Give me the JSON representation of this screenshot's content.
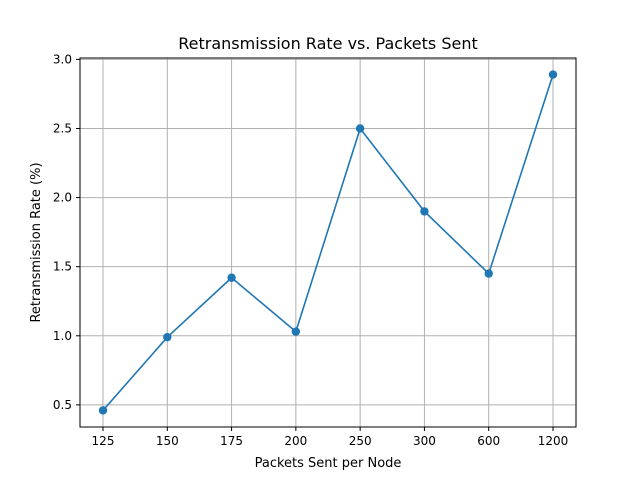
{
  "chart_data": {
    "type": "line",
    "title": "Retransmission Rate vs. Packets Sent",
    "xlabel": "Packets Sent per Node",
    "ylabel": "Retransmission Rate (%)",
    "categories": [
      "125",
      "150",
      "175",
      "200",
      "250",
      "300",
      "600",
      "1200"
    ],
    "series": [
      {
        "values": [
          0.46,
          0.99,
          1.42,
          1.03,
          2.5,
          1.9,
          1.45,
          2.89
        ]
      }
    ],
    "ylim": [
      0.34,
      3.01
    ],
    "yticks": [
      "0.5",
      "1.0",
      "1.5",
      "2.0",
      "2.5",
      "3.0"
    ],
    "grid": true,
    "color": "#1f77b4",
    "marker": "circle"
  }
}
